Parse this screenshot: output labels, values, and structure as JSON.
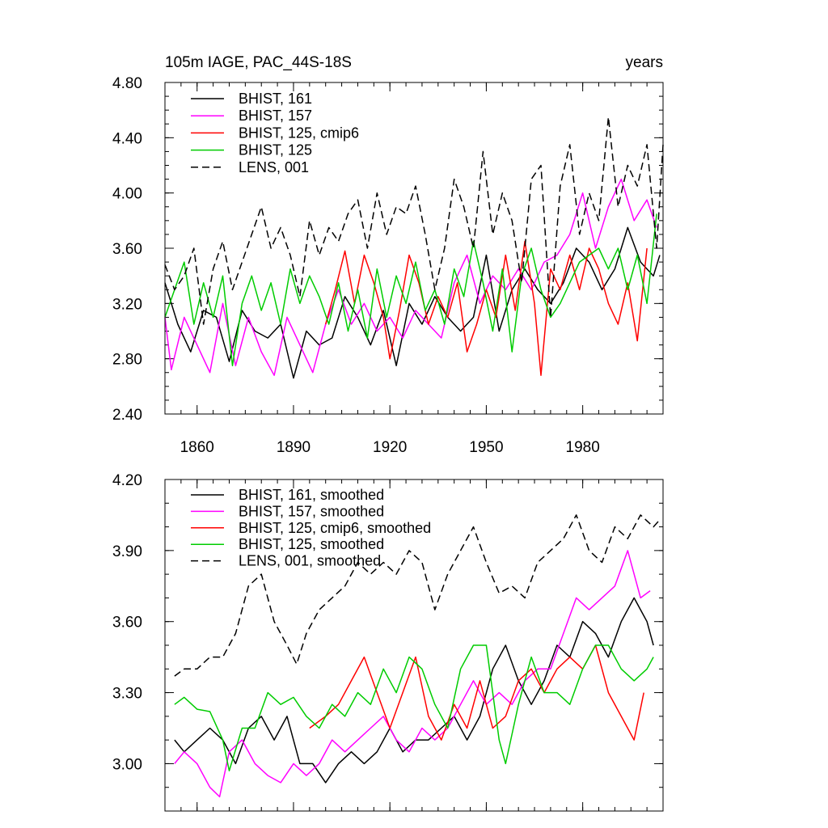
{
  "header": {
    "left_title": "105m IAGE, PAC_44S-18S",
    "right_title": "years"
  },
  "chart_data": [
    {
      "type": "line",
      "title": "105m IAGE, PAC_44S-18S",
      "units": "years",
      "xlim": [
        1850,
        2005
      ],
      "ylim": [
        2.4,
        4.8
      ],
      "x_ticks": [
        1860,
        1890,
        1920,
        1950,
        1980
      ],
      "x_tick_labels": [
        "1860",
        "1890",
        "1920",
        "1950",
        "1980"
      ],
      "y_ticks": [
        2.4,
        2.8,
        3.2,
        3.6,
        4.0,
        4.4,
        4.8
      ],
      "y_tick_labels": [
        "2.40",
        "2.80",
        "3.20",
        "3.60",
        "4.00",
        "4.40",
        "4.80"
      ],
      "legend_position": "top-left",
      "series": [
        {
          "name": "BHIST, 161",
          "color": "#000000",
          "dash": "solid",
          "x": [
            1850,
            1854,
            1858,
            1862,
            1866,
            1870,
            1874,
            1878,
            1882,
            1886,
            1890,
            1894,
            1898,
            1902,
            1906,
            1910,
            1914,
            1918,
            1922,
            1926,
            1930,
            1934,
            1938,
            1942,
            1946,
            1950,
            1954,
            1958,
            1962,
            1966,
            1970,
            1974,
            1978,
            1982,
            1986,
            1990,
            1994,
            1998,
            2002,
            2004
          ],
          "values": [
            3.35,
            3.05,
            2.85,
            3.15,
            3.1,
            2.78,
            3.15,
            3.0,
            2.95,
            3.05,
            2.66,
            3.0,
            2.9,
            2.95,
            3.25,
            3.1,
            2.9,
            3.15,
            2.75,
            3.2,
            3.05,
            3.25,
            3.1,
            3.0,
            3.1,
            3.55,
            3.0,
            3.3,
            3.45,
            3.3,
            3.2,
            3.35,
            3.6,
            3.5,
            3.3,
            3.45,
            3.75,
            3.5,
            3.4,
            3.55
          ]
        },
        {
          "name": "BHIST, 157",
          "color": "#ff00ff",
          "dash": "solid",
          "x": [
            1850,
            1852,
            1856,
            1860,
            1864,
            1868,
            1872,
            1876,
            1880,
            1884,
            1888,
            1892,
            1896,
            1900,
            1904,
            1908,
            1912,
            1916,
            1920,
            1924,
            1928,
            1932,
            1936,
            1940,
            1944,
            1948,
            1952,
            1956,
            1960,
            1964,
            1968,
            1972,
            1976,
            1980,
            1984,
            1988,
            1992,
            1996,
            2000,
            2003
          ],
          "values": [
            3.1,
            2.72,
            3.1,
            2.9,
            2.7,
            3.2,
            2.75,
            3.1,
            2.85,
            2.68,
            3.1,
            2.9,
            2.7,
            3.05,
            3.3,
            3.05,
            3.2,
            3.0,
            3.1,
            2.95,
            3.15,
            3.05,
            2.95,
            3.35,
            3.55,
            3.2,
            3.4,
            3.3,
            3.45,
            3.3,
            3.5,
            3.55,
            3.7,
            4.0,
            3.6,
            3.9,
            4.1,
            3.8,
            3.95,
            3.75
          ]
        },
        {
          "name": "BHIST, 125, cmip6",
          "color": "#ff0000",
          "dash": "solid",
          "x": [
            1900,
            1903,
            1906,
            1909,
            1912,
            1915,
            1918,
            1920,
            1923,
            1926,
            1929,
            1932,
            1935,
            1938,
            1941,
            1944,
            1947,
            1950,
            1953,
            1956,
            1959,
            1962,
            1965,
            1967,
            1970,
            1973,
            1976,
            1979,
            1982,
            1985,
            1988,
            1991,
            1994,
            1997,
            2000
          ],
          "values": [
            3.05,
            3.3,
            3.58,
            3.2,
            3.55,
            3.35,
            3.1,
            2.8,
            3.15,
            3.55,
            3.35,
            3.05,
            3.25,
            3.1,
            3.35,
            2.85,
            3.05,
            3.3,
            3.1,
            3.55,
            3.15,
            3.65,
            3.2,
            2.68,
            3.45,
            3.3,
            3.55,
            3.3,
            3.6,
            3.45,
            3.2,
            3.05,
            3.35,
            2.93,
            3.6
          ]
        },
        {
          "name": "BHIST, 125",
          "color": "#00cc00",
          "dash": "solid",
          "x": [
            1850,
            1853,
            1856,
            1859,
            1862,
            1865,
            1868,
            1871,
            1874,
            1877,
            1880,
            1883,
            1886,
            1889,
            1892,
            1895,
            1898,
            1901,
            1904,
            1907,
            1910,
            1913,
            1916,
            1919,
            1922,
            1925,
            1928,
            1931,
            1934,
            1937,
            1940,
            1943,
            1946,
            1949,
            1952,
            1955,
            1958,
            1961,
            1964,
            1967,
            1970,
            1973,
            1976,
            1979,
            1982,
            1985,
            1988,
            1991,
            1994,
            1997,
            2000,
            2003
          ],
          "values": [
            3.1,
            3.3,
            3.5,
            3.05,
            3.35,
            3.1,
            3.4,
            2.75,
            3.2,
            3.4,
            3.15,
            3.35,
            3.05,
            3.45,
            3.2,
            3.4,
            3.25,
            3.05,
            3.35,
            3.0,
            3.3,
            2.95,
            3.45,
            3.1,
            3.4,
            3.2,
            3.5,
            3.15,
            3.3,
            3.05,
            3.45,
            3.25,
            3.65,
            3.35,
            3.0,
            3.45,
            2.85,
            3.4,
            3.6,
            3.3,
            3.1,
            3.2,
            3.35,
            3.5,
            3.55,
            3.6,
            3.45,
            3.6,
            3.3,
            3.55,
            3.2,
            3.85
          ]
        },
        {
          "name": "LENS, 001",
          "color": "#000000",
          "dash": "dashed",
          "x": [
            1850,
            1853,
            1856,
            1859,
            1862,
            1865,
            1868,
            1871,
            1874,
            1877,
            1880,
            1883,
            1886,
            1889,
            1892,
            1895,
            1898,
            1901,
            1904,
            1907,
            1910,
            1913,
            1916,
            1919,
            1922,
            1925,
            1928,
            1931,
            1934,
            1937,
            1940,
            1943,
            1946,
            1949,
            1952,
            1955,
            1958,
            1961,
            1964,
            1967,
            1970,
            1973,
            1976,
            1979,
            1982,
            1985,
            1988,
            1991,
            1994,
            1997,
            2000,
            2003,
            2005
          ],
          "values": [
            3.48,
            3.3,
            3.4,
            3.6,
            3.05,
            3.45,
            3.65,
            3.3,
            3.5,
            3.7,
            3.9,
            3.6,
            3.75,
            3.55,
            3.25,
            3.8,
            3.55,
            3.75,
            3.65,
            3.85,
            3.95,
            3.6,
            4.0,
            3.7,
            3.9,
            3.85,
            4.05,
            3.7,
            3.3,
            3.6,
            4.1,
            3.9,
            3.6,
            4.3,
            3.7,
            4.0,
            3.8,
            3.35,
            4.1,
            4.2,
            3.1,
            4.05,
            4.35,
            3.7,
            4.0,
            3.8,
            4.55,
            3.9,
            4.2,
            4.05,
            4.35,
            3.6,
            4.35
          ]
        }
      ]
    },
    {
      "type": "line",
      "title": "",
      "xlim": [
        1850,
        2005
      ],
      "ylim": [
        2.8,
        4.2
      ],
      "x_ticks": [
        1860,
        1890,
        1920,
        1950,
        1980
      ],
      "x_tick_labels": [],
      "y_ticks": [
        3.0,
        3.3,
        3.6,
        3.9,
        4.2
      ],
      "y_tick_labels": [
        "3.00",
        "3.30",
        "3.60",
        "3.90",
        "4.20"
      ],
      "legend_position": "top-left",
      "series": [
        {
          "name": "BHIST, 161, smoothed",
          "color": "#000000",
          "dash": "solid",
          "x": [
            1853,
            1856,
            1860,
            1864,
            1868,
            1872,
            1876,
            1880,
            1884,
            1888,
            1892,
            1896,
            1900,
            1904,
            1908,
            1912,
            1916,
            1920,
            1924,
            1928,
            1932,
            1936,
            1940,
            1944,
            1948,
            1952,
            1956,
            1960,
            1964,
            1968,
            1972,
            1976,
            1980,
            1984,
            1988,
            1992,
            1996,
            2000,
            2002
          ],
          "values": [
            3.1,
            3.05,
            3.1,
            3.15,
            3.1,
            3.0,
            3.15,
            3.2,
            3.1,
            3.2,
            3.0,
            3.0,
            2.92,
            3.0,
            3.05,
            3.0,
            3.05,
            3.15,
            3.05,
            3.1,
            3.1,
            3.15,
            3.2,
            3.1,
            3.2,
            3.4,
            3.5,
            3.35,
            3.25,
            3.35,
            3.5,
            3.45,
            3.6,
            3.55,
            3.45,
            3.6,
            3.7,
            3.6,
            3.5
          ]
        },
        {
          "name": "BHIST, 157, smoothed",
          "color": "#ff00ff",
          "dash": "solid",
          "x": [
            1853,
            1856,
            1860,
            1864,
            1867,
            1870,
            1874,
            1878,
            1882,
            1886,
            1890,
            1894,
            1898,
            1902,
            1906,
            1910,
            1914,
            1918,
            1922,
            1926,
            1930,
            1934,
            1938,
            1942,
            1946,
            1950,
            1954,
            1958,
            1962,
            1966,
            1970,
            1974,
            1978,
            1982,
            1986,
            1990,
            1994,
            1998,
            2001
          ],
          "values": [
            3.0,
            3.05,
            3.0,
            2.9,
            2.86,
            3.05,
            3.1,
            3.0,
            2.95,
            2.92,
            3.0,
            2.95,
            3.0,
            3.1,
            3.05,
            3.1,
            3.15,
            3.2,
            3.1,
            3.05,
            3.15,
            3.1,
            3.15,
            3.25,
            3.35,
            3.25,
            3.3,
            3.25,
            3.35,
            3.4,
            3.4,
            3.55,
            3.7,
            3.65,
            3.7,
            3.75,
            3.9,
            3.7,
            3.73
          ]
        },
        {
          "name": "BHIST, 125, cmip6, smoothed",
          "color": "#ff0000",
          "dash": "solid",
          "x": [
            1895,
            1900,
            1904,
            1908,
            1912,
            1916,
            1920,
            1924,
            1928,
            1932,
            1936,
            1940,
            1944,
            1948,
            1952,
            1956,
            1960,
            1964,
            1968,
            1972,
            1976,
            1980,
            1984,
            1988,
            1992,
            1996,
            1999
          ],
          "values": [
            3.15,
            3.2,
            3.25,
            3.35,
            3.45,
            3.3,
            3.15,
            3.3,
            3.45,
            3.2,
            3.1,
            3.25,
            3.15,
            3.35,
            3.15,
            3.2,
            3.35,
            3.4,
            3.3,
            3.4,
            3.45,
            3.4,
            3.5,
            3.3,
            3.2,
            3.1,
            3.3
          ]
        },
        {
          "name": "BHIST, 125, smoothed",
          "color": "#00cc00",
          "dash": "solid",
          "x": [
            1853,
            1856,
            1860,
            1864,
            1868,
            1870,
            1874,
            1878,
            1882,
            1886,
            1890,
            1894,
            1898,
            1902,
            1906,
            1910,
            1914,
            1918,
            1922,
            1926,
            1930,
            1934,
            1938,
            1942,
            1946,
            1950,
            1954,
            1956,
            1960,
            1964,
            1968,
            1972,
            1976,
            1980,
            1984,
            1988,
            1992,
            1996,
            2000,
            2002
          ],
          "values": [
            3.25,
            3.28,
            3.23,
            3.22,
            3.1,
            2.97,
            3.15,
            3.15,
            3.3,
            3.25,
            3.28,
            3.2,
            3.15,
            3.25,
            3.2,
            3.3,
            3.25,
            3.4,
            3.3,
            3.45,
            3.4,
            3.25,
            3.15,
            3.4,
            3.5,
            3.5,
            3.1,
            3.0,
            3.25,
            3.45,
            3.3,
            3.3,
            3.25,
            3.4,
            3.5,
            3.5,
            3.4,
            3.35,
            3.4,
            3.45
          ]
        },
        {
          "name": "LENS, 001, smoothed",
          "color": "#000000",
          "dash": "dashed",
          "x": [
            1853,
            1856,
            1860,
            1864,
            1868,
            1872,
            1876,
            1880,
            1884,
            1888,
            1891,
            1894,
            1898,
            1902,
            1906,
            1910,
            1914,
            1918,
            1922,
            1926,
            1930,
            1934,
            1938,
            1942,
            1946,
            1950,
            1954,
            1958,
            1962,
            1966,
            1970,
            1974,
            1978,
            1982,
            1986,
            1990,
            1994,
            1998,
            2002,
            2004
          ],
          "values": [
            3.37,
            3.4,
            3.4,
            3.45,
            3.45,
            3.55,
            3.75,
            3.8,
            3.6,
            3.5,
            3.42,
            3.55,
            3.65,
            3.7,
            3.75,
            3.85,
            3.8,
            3.85,
            3.8,
            3.9,
            3.85,
            3.65,
            3.8,
            3.9,
            4.0,
            3.85,
            3.72,
            3.75,
            3.7,
            3.85,
            3.9,
            3.95,
            4.05,
            3.9,
            3.85,
            4.0,
            3.95,
            4.05,
            4.0,
            4.03
          ]
        }
      ]
    }
  ]
}
